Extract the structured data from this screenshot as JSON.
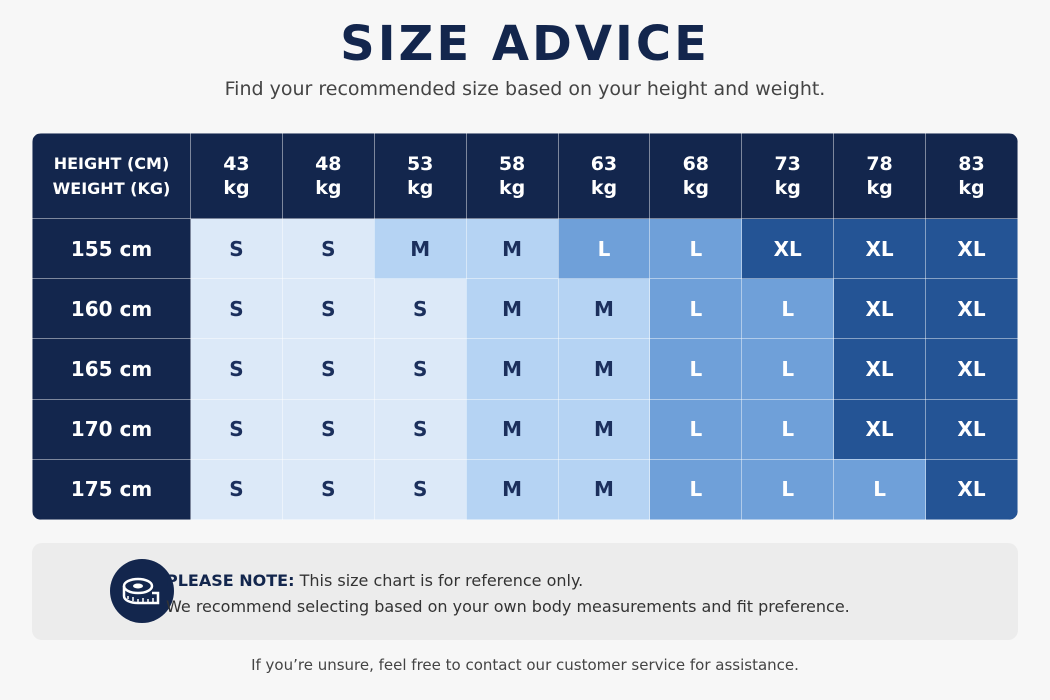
{
  "header": {
    "title": "SIZE ADVICE",
    "subtitle": "Find your recommended size based on your height and weight."
  },
  "table": {
    "corner": [
      "HEIGHT (CM)",
      "WEIGHT (KG)"
    ],
    "columns": [
      {
        "value": "43",
        "unit": "kg"
      },
      {
        "value": "48",
        "unit": "kg"
      },
      {
        "value": "53",
        "unit": "kg"
      },
      {
        "value": "58",
        "unit": "kg"
      },
      {
        "value": "63",
        "unit": "kg"
      },
      {
        "value": "68",
        "unit": "kg"
      },
      {
        "value": "73",
        "unit": "kg"
      },
      {
        "value": "78",
        "unit": "kg"
      },
      {
        "value": "83",
        "unit": "kg"
      }
    ],
    "rows": [
      {
        "label": "155 cm",
        "cells": [
          "S",
          "S",
          "M",
          "M",
          "L",
          "L",
          "XL",
          "XL",
          "XL"
        ]
      },
      {
        "label": "160 cm",
        "cells": [
          "S",
          "S",
          "S",
          "M",
          "M",
          "L",
          "L",
          "XL",
          "XL"
        ]
      },
      {
        "label": "165 cm",
        "cells": [
          "S",
          "S",
          "S",
          "M",
          "M",
          "L",
          "L",
          "XL",
          "XL"
        ]
      },
      {
        "label": "170 cm",
        "cells": [
          "S",
          "S",
          "S",
          "M",
          "M",
          "L",
          "L",
          "XL",
          "XL"
        ]
      },
      {
        "label": "175 cm",
        "cells": [
          "S",
          "S",
          "S",
          "M",
          "M",
          "L",
          "L",
          "L",
          "XL"
        ]
      }
    ],
    "size_colors": {
      "S": "#dce9f8",
      "M": "#b5d3f3",
      "L": "#6fa0d9",
      "XL": "#245495"
    },
    "size_text_colors": {
      "S": "#1b2f5c",
      "M": "#1b2f5c",
      "L": "#ffffff",
      "XL": "#ffffff"
    }
  },
  "note": {
    "label": "PLEASE NOTE:",
    "line1": "This size chart is for reference only.",
    "line2": "We recommend selecting based on your own body measurements and fit preference."
  },
  "footer": "If you’re unsure, feel free to contact our customer service for assistance."
}
